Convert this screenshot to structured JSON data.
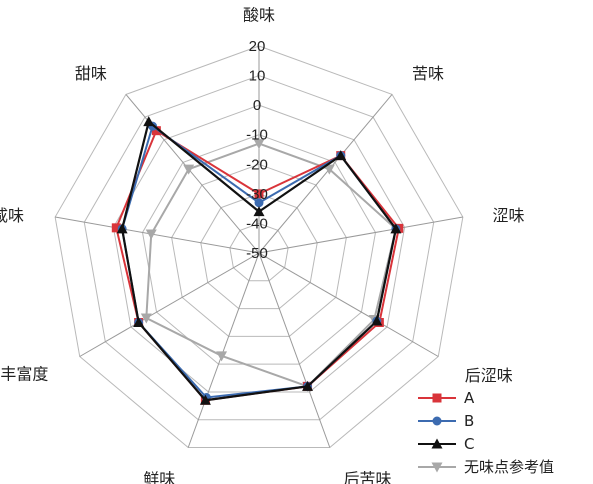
{
  "chart_data": {
    "type": "radar",
    "axes": [
      "酸味",
      "苦味",
      "涩味",
      "后涩味",
      "后苦味",
      "鲜味",
      "丰富度",
      "咸味",
      "甜味"
    ],
    "rlim": [
      -50,
      20
    ],
    "ticks": [
      20,
      10,
      0,
      -10,
      -20,
      -30,
      -40,
      -50
    ],
    "tick_labels": [
      "20",
      "10",
      "0",
      "-10",
      "-20",
      "-30",
      "-40",
      "-50"
    ],
    "grid": true,
    "legend_position": "bottom-right",
    "series": [
      {
        "name": "A",
        "color": "#d9343a",
        "marker": "square",
        "values": [
          -30,
          -7,
          -2,
          -3,
          -2,
          3,
          -3,
          -1,
          4
        ]
      },
      {
        "name": "B",
        "color": "#3c6bb0",
        "marker": "circle",
        "values": [
          -33,
          -7,
          -3,
          -4,
          -2,
          2,
          -3,
          -3,
          6
        ]
      },
      {
        "name": "C",
        "color": "#111111",
        "marker": "triangle",
        "values": [
          -36,
          -7,
          -3,
          -4,
          -2,
          3,
          -3,
          -3,
          8
        ]
      },
      {
        "name": "无味点参考值",
        "color": "#a8a8a8",
        "marker": "triangle-down",
        "values": [
          -13,
          -13,
          -3,
          -5,
          -2,
          -13,
          -6,
          -13,
          -13
        ]
      }
    ]
  }
}
